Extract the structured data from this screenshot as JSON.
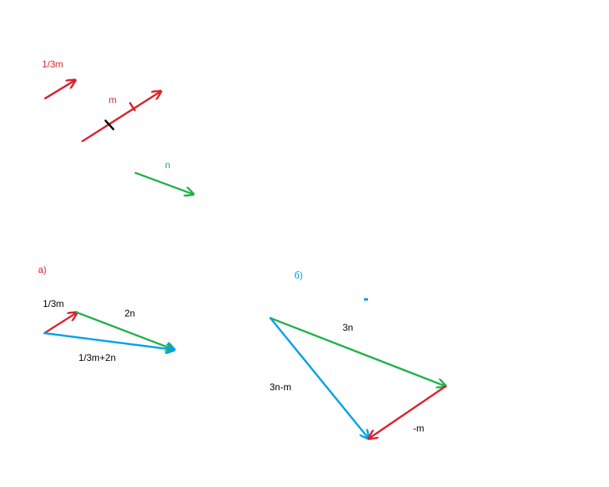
{
  "vectors": {
    "one_third_m": "1/3m",
    "m": "m",
    "n": "n"
  },
  "part_a": {
    "title": "а)",
    "one_third_m": "1/3m",
    "two_n": "2n",
    "sum": "1/3m+2n"
  },
  "part_b": {
    "title": "б)",
    "three_n": "3n",
    "difference": "3n-m",
    "minus_m": "-m"
  }
}
